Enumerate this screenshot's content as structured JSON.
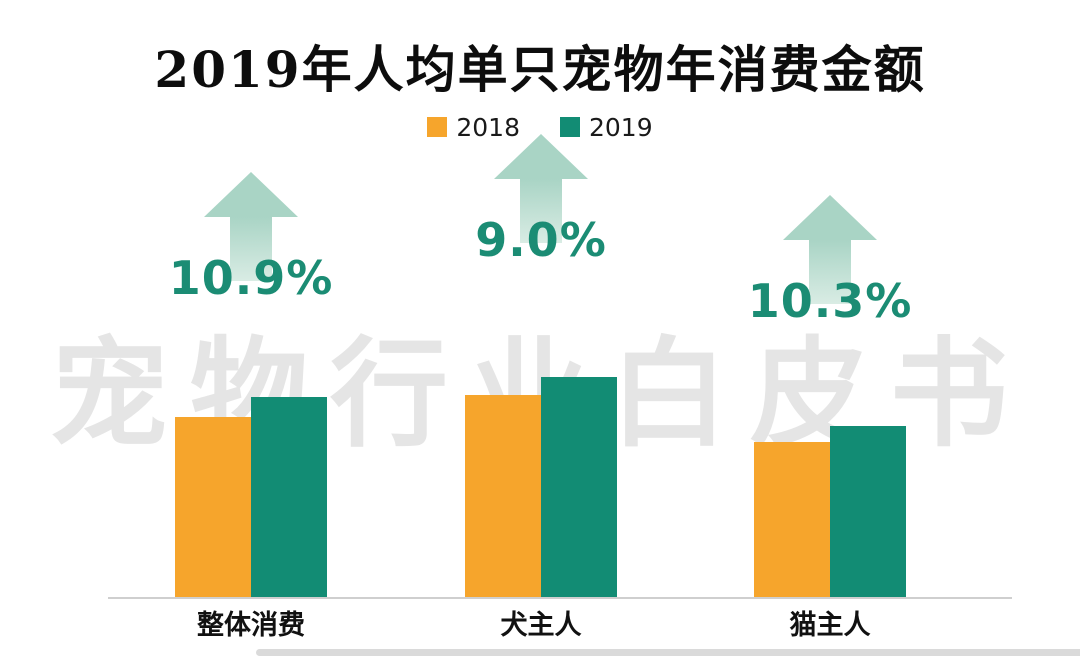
{
  "title": "2019年人均单只宠物年消费金额",
  "watermark": "宠物行业白皮书",
  "legend": [
    {
      "label": "2018",
      "color": "#F6A52C"
    },
    {
      "label": "2019",
      "color": "#128C74"
    }
  ],
  "chart_data": {
    "type": "bar",
    "title": "2019年人均单只宠物年消费金额",
    "categories": [
      "整体消费",
      "犬主人",
      "猫主人"
    ],
    "series": [
      {
        "name": "2018",
        "color": "#F6A52C",
        "values": [
          100,
          112,
          86
        ]
      },
      {
        "name": "2019",
        "color": "#128C74",
        "values": [
          110.9,
          122.1,
          94.9
        ]
      }
    ],
    "growth_labels": [
      "10.9%",
      "9.0%",
      "10.3%"
    ],
    "value_scale": "relative index (2018 整体消费 = 100); no numeric axis shown in chart",
    "legend_position": "top",
    "grid": false
  },
  "colors": {
    "bar_2018": "#F6A52C",
    "bar_2019": "#128C74",
    "growth_text": "#1B8C74",
    "arrow_fill": "#A9D4C5",
    "arrow_fill_light": "#D9ECE4",
    "watermark": "#E5E5E5",
    "axis_line": "#CFCFCF"
  }
}
